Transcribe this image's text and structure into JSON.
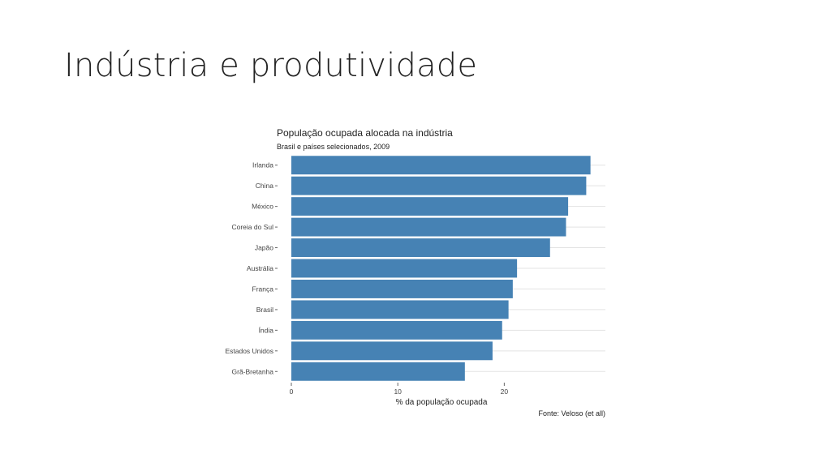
{
  "slide": {
    "title": "Indústria e produtividade"
  },
  "chart_data": {
    "type": "bar",
    "orientation": "horizontal",
    "title": "População ocupada alocada na indústria",
    "subtitle": "Brasil e países selecionados, 2009",
    "xlabel": "% da população ocupada",
    "ylabel": "",
    "source": "Fonte: Veloso (et all)",
    "categories": [
      "Irlanda",
      "China",
      "México",
      "Coreia do Sul",
      "Japão",
      "Austrália",
      "França",
      "Brasil",
      "Índia",
      "Estados Unidos",
      "Grã-Bretanha"
    ],
    "values": [
      28.1,
      27.7,
      26.0,
      25.8,
      24.3,
      21.2,
      20.8,
      20.4,
      19.8,
      18.9,
      16.3
    ],
    "xlim": [
      0,
      29.5
    ],
    "xticks": [
      "0",
      "10",
      "20"
    ],
    "bar_color": "#4682b4",
    "grid": true,
    "legend": "none"
  }
}
